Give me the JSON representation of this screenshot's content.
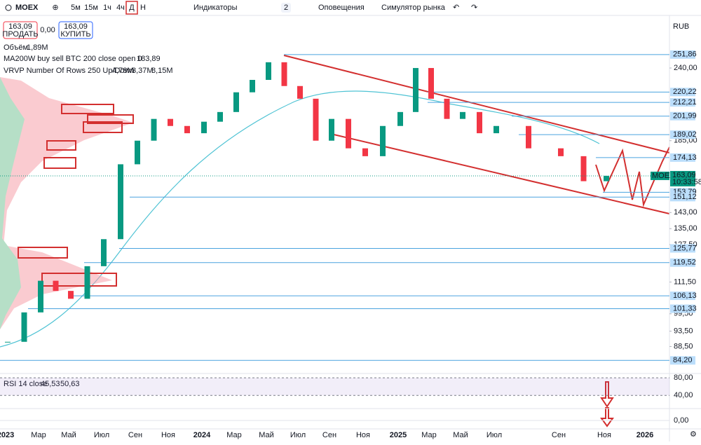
{
  "toolbar": {
    "symbol": "MOEX",
    "intervals": [
      "5м",
      "15м",
      "1ч",
      "4ч",
      "Д",
      "Н"
    ],
    "indicators": "Индикаторы",
    "layouts_count": "2",
    "alerts": "Оповещения",
    "simulator": "Симулятор рынка"
  },
  "trade": {
    "sell_price": "163,09",
    "sell": "ПРОДАТЬ",
    "spread": "0,00",
    "buy_price": "163,09",
    "buy": "КУПИТЬ"
  },
  "currency": "RUB",
  "legend": {
    "volume": {
      "name": "Объём",
      "value": "1,89M"
    },
    "ma": {
      "name": "MA200W buy sell BTC 200 close open 0",
      "value": "183,89"
    },
    "vrvp": {
      "name": "VRVP Number Of Rows 250 Up/Down",
      "up": "4,78M",
      "down": "3,37M",
      "total": "8,15M"
    }
  },
  "price_axis": {
    "scale": "log",
    "ylim": [
      83,
      284
    ],
    "ticks": [
      {
        "value": 240,
        "label": "240,00"
      },
      {
        "value": 185,
        "label": "185,00"
      },
      {
        "value": 143,
        "label": "143,00"
      },
      {
        "value": 135,
        "label": "135,00"
      },
      {
        "value": 127.5,
        "label": "127,50"
      },
      {
        "value": 111.5,
        "label": "111,50"
      },
      {
        "value": 99.5,
        "label": "99,50"
      },
      {
        "value": 93.5,
        "label": "93,50"
      },
      {
        "value": 88.5,
        "label": "88,50"
      }
    ],
    "levels": [
      {
        "value": 251.86,
        "label": "251,86"
      },
      {
        "value": 220.22,
        "label": "220,22"
      },
      {
        "value": 212.21,
        "label": "212,21"
      },
      {
        "value": 201.99,
        "label": "201,99"
      },
      {
        "value": 189.02,
        "label": "189,02"
      },
      {
        "value": 174.13,
        "label": "174,13"
      },
      {
        "value": 153.79,
        "label": "153,79"
      },
      {
        "value": 151.12,
        "label": "151,12"
      },
      {
        "value": 125.77,
        "label": "125,77"
      },
      {
        "value": 119.52,
        "label": "119,52"
      },
      {
        "value": 106.13,
        "label": "106,13"
      },
      {
        "value": 101.33,
        "label": "101,33"
      },
      {
        "value": 84.2,
        "label": "84,20"
      }
    ]
  },
  "current": {
    "symbol": "MOEX",
    "price": {
      "value": 163.09,
      "label": "163,09"
    },
    "timer": "10:33:58"
  },
  "time_axis": {
    "labels": [
      "2023",
      "Мар",
      "Май",
      "Июл",
      "Сен",
      "Ноя",
      "2024",
      "Мар",
      "Май",
      "Июл",
      "Сен",
      "Ноя",
      "2025",
      "Мар",
      "Май",
      "Июл",
      "Сен",
      "Ноя",
      "2026"
    ]
  },
  "price": {
    "values": [
      90,
      100,
      112,
      108,
      105,
      118,
      130,
      170,
      185,
      200,
      195,
      190,
      198,
      205,
      220,
      230,
      245,
      225,
      215,
      185,
      200,
      180,
      175,
      195,
      205,
      240,
      215,
      200,
      205,
      190,
      195,
      180,
      175,
      160,
      163.09
    ]
  },
  "rsi": {
    "name": "RSI 14 close",
    "value": "45,53",
    "ma": "50,63",
    "ylim": [
      15,
      85
    ],
    "ticks": [
      {
        "value": 80,
        "label": "80,00"
      },
      {
        "value": 40,
        "label": "40,00"
      }
    ]
  },
  "macd": {
    "tick": {
      "value": 0,
      "label": "0,00"
    }
  }
}
